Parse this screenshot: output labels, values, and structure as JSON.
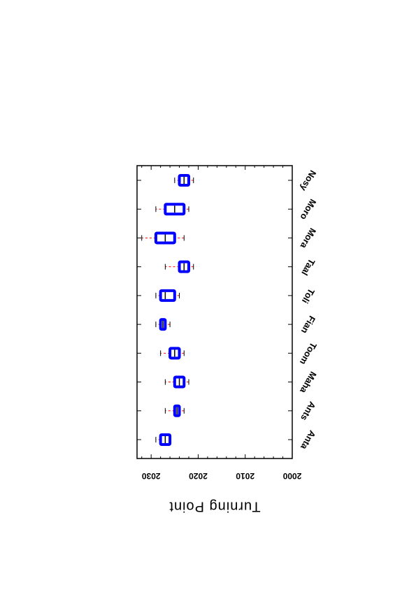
{
  "chart_data": {
    "type": "box",
    "ylabel": "Turning Point",
    "ylim": [
      2000,
      2033
    ],
    "yticks": [
      "2000",
      "2010",
      "2020",
      "2030"
    ],
    "categories": [
      "Anta",
      "Ants",
      "Maha",
      "Toom",
      "Fian",
      "Toli",
      "Taal",
      "Mora",
      "Moro",
      "Nosy"
    ],
    "boxes": [
      {
        "whisker_low": 2026,
        "q1": 2026,
        "median": 2027,
        "q3": 2028,
        "whisker_high": 2029
      },
      {
        "whisker_low": 2023,
        "q1": 2024,
        "median": 2024.5,
        "q3": 2025,
        "whisker_high": 2027
      },
      {
        "whisker_low": 2022,
        "q1": 2023,
        "median": 2024,
        "q3": 2025,
        "whisker_high": 2027
      },
      {
        "whisker_low": 2023,
        "q1": 2024,
        "median": 2025,
        "q3": 2026,
        "whisker_high": 2028
      },
      {
        "whisker_low": 2026,
        "q1": 2027,
        "median": 2027.5,
        "q3": 2028,
        "whisker_high": 2029
      },
      {
        "whisker_low": 2024,
        "q1": 2025,
        "median": 2027,
        "q3": 2028,
        "whisker_high": 2029
      },
      {
        "whisker_low": 2021,
        "q1": 2022,
        "median": 2023,
        "q3": 2024,
        "whisker_high": 2027
      },
      {
        "whisker_low": 2023,
        "q1": 2025,
        "median": 2027,
        "q3": 2029,
        "whisker_high": 2032
      },
      {
        "whisker_low": 2022,
        "q1": 2023,
        "median": 2025,
        "q3": 2027,
        "whisker_high": 2029
      },
      {
        "whisker_low": 2021,
        "q1": 2022,
        "median": 2023,
        "q3": 2024,
        "whisker_high": 2025
      }
    ],
    "colors": {
      "box": "#0000ff",
      "median": "#000000",
      "whisker": "#ff0000",
      "cap": "#000000",
      "axis": "#000000"
    },
    "grid": false,
    "orientation": "rotated-90-clockwise"
  }
}
